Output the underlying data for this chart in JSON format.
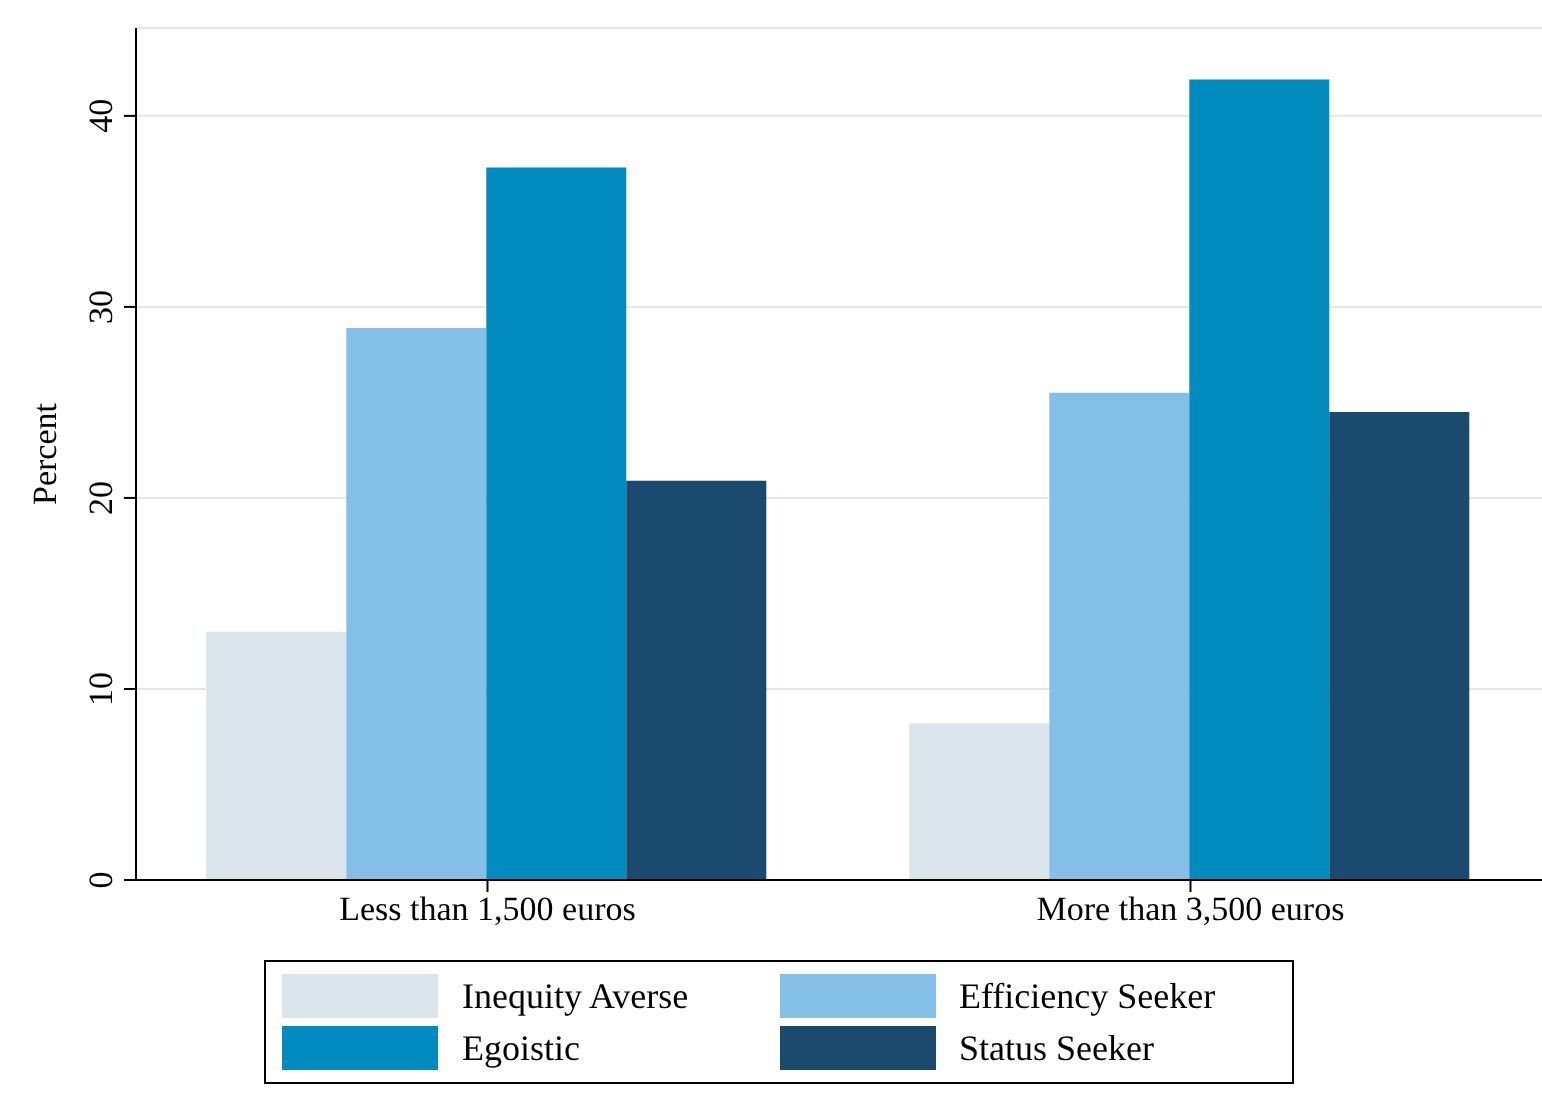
{
  "chart_data": {
    "type": "bar",
    "ylabel": "Percent",
    "categories": [
      "Less than 1,500 euros",
      "More than 3,500 euros"
    ],
    "series": [
      {
        "name": "Inequity Averse",
        "color": "#dae6ec",
        "values": [
          13.0,
          8.2
        ]
      },
      {
        "name": "Efficiency Seeker",
        "color": "#84bfe8",
        "values": [
          28.9,
          25.5
        ]
      },
      {
        "name": "Egoistic",
        "color": "#028bbe",
        "values": [
          37.3,
          41.9
        ]
      },
      {
        "name": "Status Seeker",
        "color": "#1a4a6e",
        "values": [
          20.9,
          24.5
        ]
      }
    ],
    "ylim": [
      0,
      44.6
    ],
    "yticks": [
      0,
      10,
      20,
      30,
      40
    ],
    "grid": "y",
    "legend": "bottom"
  }
}
